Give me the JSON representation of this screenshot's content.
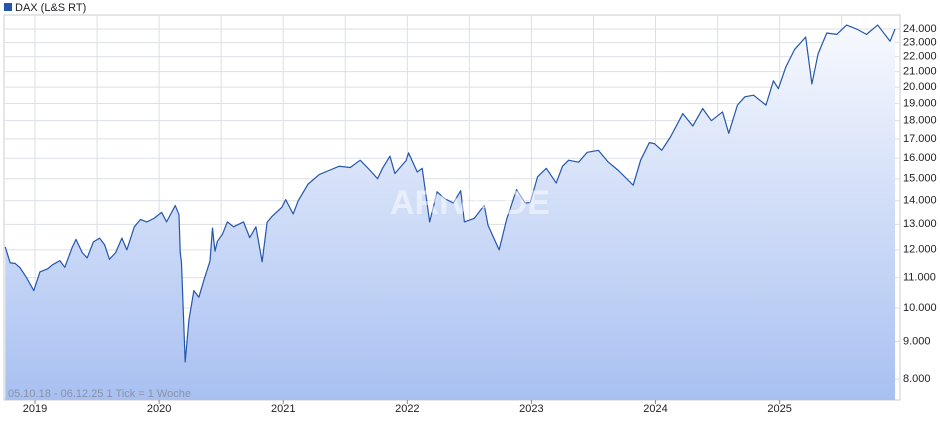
{
  "chart_data": {
    "type": "line",
    "series": [
      {
        "name": "DAX (L&S RT)",
        "color": "#2456ab",
        "values": [
          12110,
          11520,
          11500,
          11340,
          11010,
          10560,
          11200,
          11300,
          11450,
          11600,
          11360,
          12100,
          12400,
          11900,
          11700,
          12300,
          12450,
          12200,
          11650,
          11900,
          12450,
          12000,
          12900,
          13200,
          13100,
          13250,
          13500,
          13100,
          13790,
          13400,
          11900,
          11540,
          8440,
          9630,
          10560,
          10340,
          10900,
          11590,
          12850,
          11950,
          12330,
          12600,
          13100,
          12900,
          13100,
          12470,
          12900,
          11560,
          13080,
          13330,
          13720,
          14050,
          13430,
          13990,
          14750,
          15200,
          15400,
          15600,
          15540,
          15900,
          15400,
          15000,
          15500,
          16100,
          15250,
          15600,
          15880,
          16270,
          15320,
          15500,
          13100,
          14400,
          14100,
          13900,
          14450,
          13100,
          13250,
          13800,
          12970,
          12000,
          13200,
          14500,
          13900,
          13920,
          15100,
          15500,
          14800,
          15600,
          15900,
          15800,
          16300,
          16400,
          15800,
          15400,
          14700,
          15900,
          16800,
          16750,
          16400,
          17100,
          18400,
          17700,
          18700,
          18000,
          18500,
          17300,
          18900,
          19400,
          19500,
          18900,
          20400,
          19900,
          21300,
          22500,
          23400,
          20200,
          22200,
          23700,
          23600,
          24300,
          24000,
          23600,
          24300,
          23100,
          24000
        ]
      }
    ],
    "x": [
      2018.76,
      2018.8,
      2018.84,
      2018.88,
      2018.93,
      2018.99,
      2019.04,
      2019.1,
      2019.14,
      2019.2,
      2019.24,
      2019.3,
      2019.33,
      2019.38,
      2019.42,
      2019.47,
      2019.52,
      2019.56,
      2019.6,
      2019.65,
      2019.7,
      2019.74,
      2019.8,
      2019.85,
      2019.9,
      2019.96,
      2020.02,
      2020.06,
      2020.13,
      2020.16,
      2020.17,
      2020.18,
      2020.21,
      2020.24,
      2020.28,
      2020.32,
      2020.36,
      2020.41,
      2020.43,
      2020.45,
      2020.47,
      2020.51,
      2020.55,
      2020.6,
      2020.68,
      2020.73,
      2020.78,
      2020.83,
      2020.87,
      2020.91,
      2020.99,
      2021.02,
      2021.08,
      2021.12,
      2021.2,
      2021.29,
      2021.37,
      2021.45,
      2021.54,
      2021.62,
      2021.7,
      2021.76,
      2021.8,
      2021.86,
      2021.9,
      2021.95,
      2021.99,
      2022.01,
      2022.08,
      2022.12,
      2022.18,
      2022.24,
      2022.3,
      2022.37,
      2022.43,
      2022.46,
      2022.54,
      2022.62,
      2022.65,
      2022.74,
      2022.8,
      2022.88,
      2022.95,
      2022.99,
      2023.05,
      2023.12,
      2023.2,
      2023.25,
      2023.3,
      2023.38,
      2023.45,
      2023.54,
      2023.62,
      2023.7,
      2023.82,
      2023.88,
      2023.95,
      2023.99,
      2024.05,
      2024.12,
      2024.22,
      2024.3,
      2024.38,
      2024.45,
      2024.54,
      2024.59,
      2024.66,
      2024.72,
      2024.79,
      2024.89,
      2024.95,
      2024.99,
      2025.05,
      2025.12,
      2025.21,
      2025.26,
      2025.31,
      2025.38,
      2025.46,
      2025.54,
      2025.62,
      2025.7,
      2025.79,
      2025.89,
      2025.93
    ],
    "xlim": [
      2018.75,
      2025.97
    ],
    "xticks": [
      2019,
      2020,
      2021,
      2022,
      2023,
      2024,
      2025
    ],
    "xminorticks": [
      2019.5,
      2020.5,
      2021.5,
      2022.5,
      2023.5,
      2024.5,
      2025.5
    ],
    "ylim": [
      7490,
      25080
    ],
    "yticks": [
      {
        "value": 8000,
        "label": "8.000"
      },
      {
        "value": 9000,
        "label": "9.000"
      },
      {
        "value": 10000,
        "label": "10.000"
      },
      {
        "value": 11000,
        "label": "11.000"
      },
      {
        "value": 12000,
        "label": "12.000"
      },
      {
        "value": 13000,
        "label": "13.000"
      },
      {
        "value": 14000,
        "label": "14.000"
      },
      {
        "value": 15000,
        "label": "15.000"
      },
      {
        "value": 16000,
        "label": "16.000"
      },
      {
        "value": 17000,
        "label": "17.000"
      },
      {
        "value": 18000,
        "label": "18.000"
      },
      {
        "value": 19000,
        "label": "19.000"
      },
      {
        "value": 20000,
        "label": "20.000"
      },
      {
        "value": 21000,
        "label": "21.000"
      },
      {
        "value": 22000,
        "label": "22.000"
      },
      {
        "value": 23000,
        "label": "23.000"
      },
      {
        "value": 24000,
        "label": "24.000"
      }
    ],
    "log_scale": true,
    "grid": true,
    "annotation": "05.10.18 - 06.12.25   1 Tick = 1 Woche",
    "watermark": "ARIVA.DE"
  }
}
